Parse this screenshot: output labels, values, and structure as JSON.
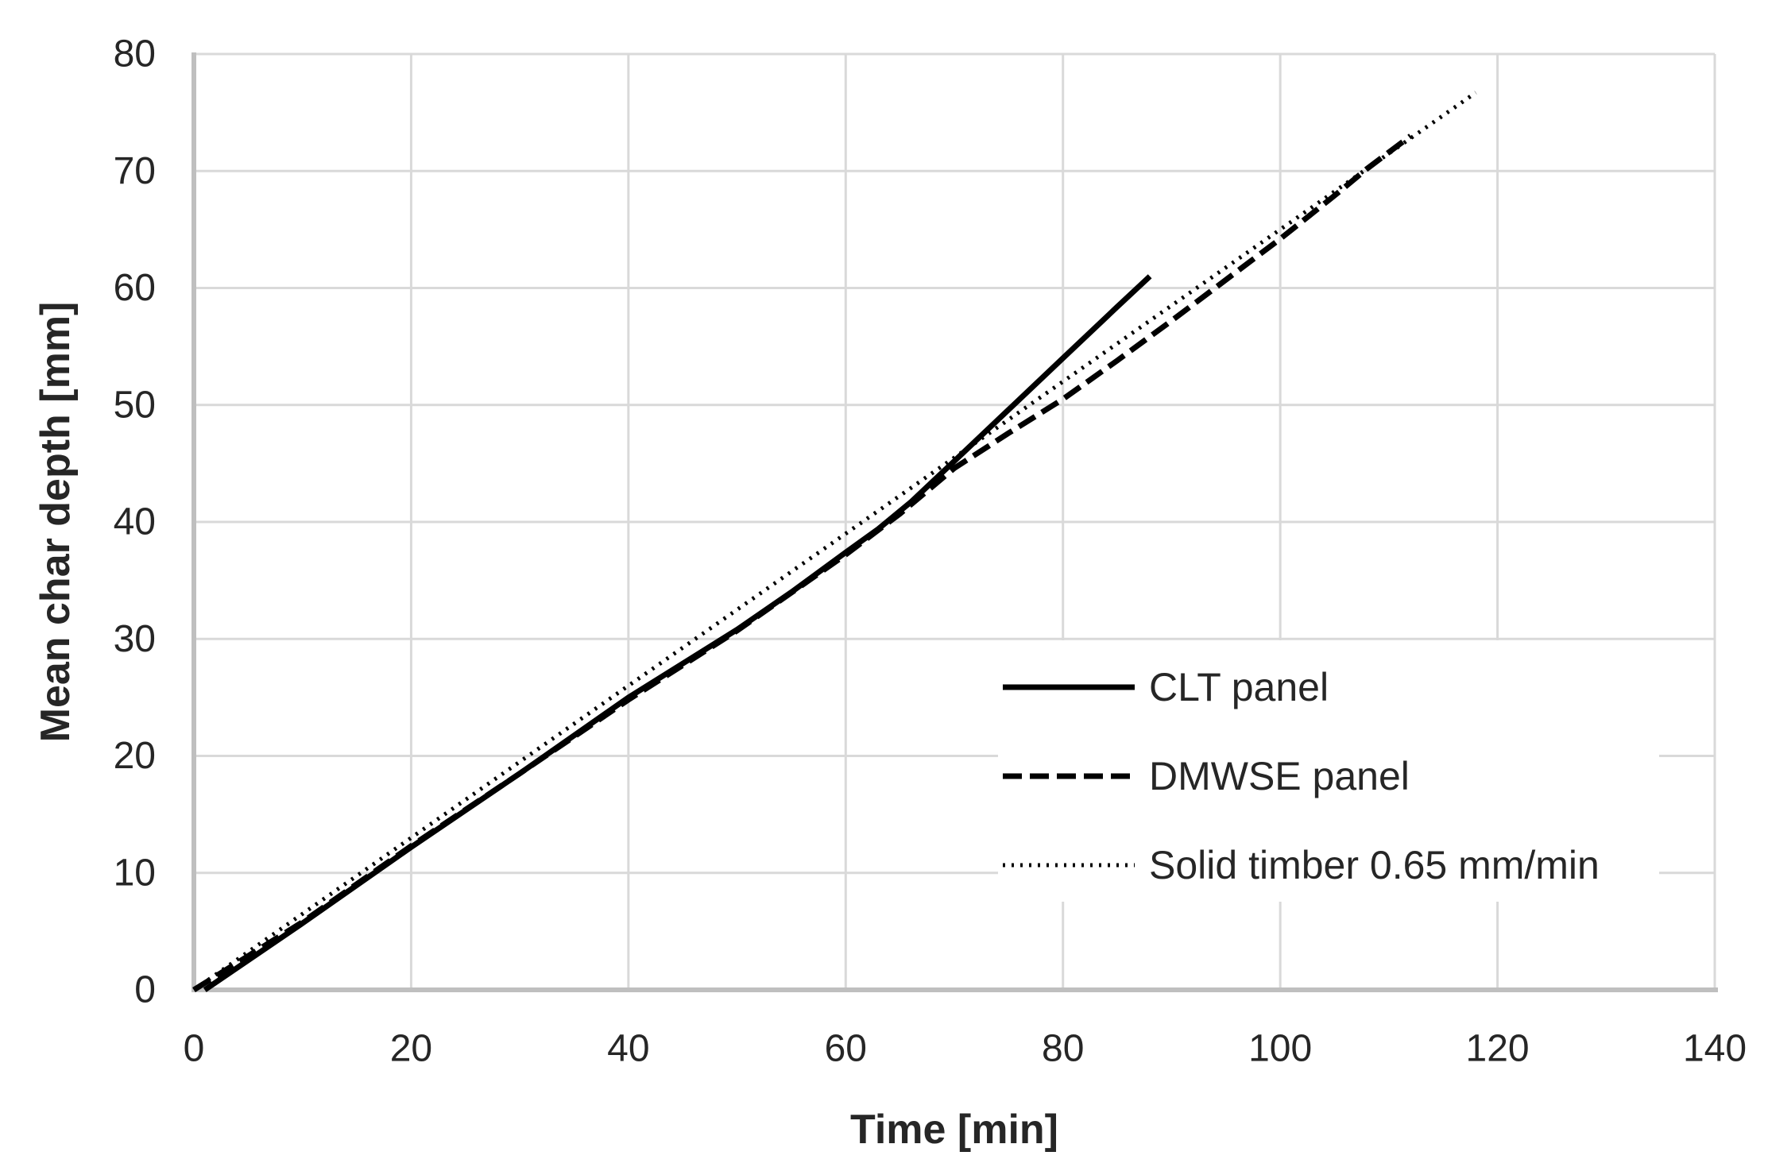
{
  "chart_data": {
    "type": "line",
    "title": "",
    "xlabel": "Time [min]",
    "ylabel": "Mean char depth [mm]",
    "xlim": [
      0,
      140
    ],
    "ylim": [
      0,
      80
    ],
    "x_ticks": [
      0,
      20,
      40,
      60,
      80,
      100,
      120,
      140
    ],
    "y_ticks": [
      0,
      10,
      20,
      30,
      40,
      50,
      60,
      70,
      80
    ],
    "grid": true,
    "legend_position": "inside-right-lower",
    "series": [
      {
        "name": "CLT panel",
        "line_style": "solid",
        "color": "#000000",
        "points": [
          [
            1,
            0
          ],
          [
            10,
            5.7
          ],
          [
            20,
            12.2
          ],
          [
            30,
            18.5
          ],
          [
            40,
            25
          ],
          [
            50,
            30.8
          ],
          [
            55,
            34
          ],
          [
            60,
            37.4
          ],
          [
            63,
            39.4
          ],
          [
            66,
            41.7
          ],
          [
            70,
            45.2
          ],
          [
            75,
            49.6
          ],
          [
            80,
            54
          ],
          [
            85,
            58.4
          ],
          [
            88,
            61
          ]
        ]
      },
      {
        "name": "DMWSE panel",
        "line_style": "dashed",
        "color": "#000000",
        "points": [
          [
            0,
            0
          ],
          [
            10,
            5.8
          ],
          [
            20,
            12.3
          ],
          [
            30,
            18.5
          ],
          [
            40,
            24.8
          ],
          [
            50,
            30.7
          ],
          [
            60,
            37.2
          ],
          [
            65,
            40.7
          ],
          [
            70,
            44.6
          ],
          [
            75,
            47.6
          ],
          [
            80,
            50.5
          ],
          [
            85,
            53.8
          ],
          [
            90,
            57.2
          ],
          [
            95,
            60.7
          ],
          [
            100,
            64.2
          ],
          [
            105,
            67.9
          ],
          [
            108,
            70.2
          ],
          [
            112,
            73
          ]
        ]
      },
      {
        "name": "Solid timber 0.65 mm/min",
        "line_style": "dotted",
        "color": "#000000",
        "charring_rate_mm_per_min": 0.65,
        "points": [
          [
            0,
            0
          ],
          [
            118,
            76.7
          ]
        ]
      }
    ]
  },
  "colors": {
    "gridline": "#d9d9d9",
    "axis_line": "#bfbfbf",
    "text": "#262626",
    "series": "#000000",
    "background": "#ffffff",
    "legend_background": "#ffffff"
  }
}
